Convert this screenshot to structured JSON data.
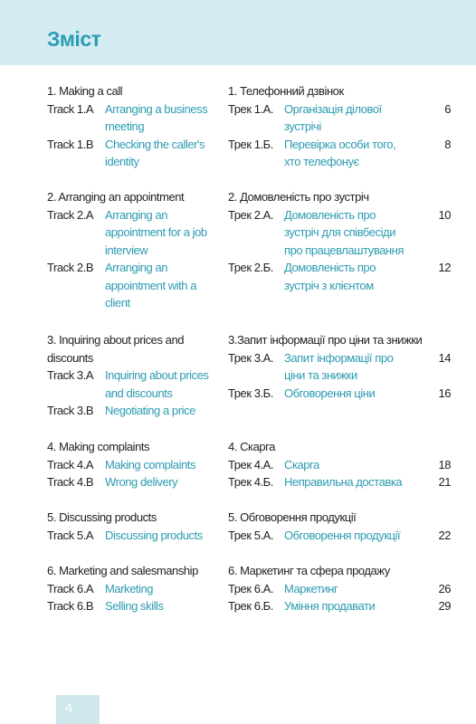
{
  "header": {
    "title": "Зміст"
  },
  "english": [
    {
      "title": "1. Making a call",
      "tracks": [
        {
          "label": "Track 1.A",
          "text": "Arranging a business meeting"
        },
        {
          "label": "Track 1.B",
          "text": "Checking the caller's identity"
        }
      ]
    },
    {
      "title": "2. Arranging an appointment",
      "tracks": [
        {
          "label": "Track 2.A",
          "text": "Arranging an appointment for a job interview"
        },
        {
          "label": "Track 2.B",
          "text": "Arranging an appointment with a client"
        }
      ]
    },
    {
      "title": "3. Inquiring about prices and discounts",
      "tracks": [
        {
          "label": "Track 3.A",
          "text": "Inquiring about prices and discounts"
        },
        {
          "label": "Track 3.B",
          "text": "Negotiating a price"
        }
      ]
    },
    {
      "title": "4. Making complaints",
      "tracks": [
        {
          "label": "Track 4.A",
          "text": "Making complaints"
        },
        {
          "label": "Track 4.B",
          "text": "Wrong delivery"
        }
      ]
    },
    {
      "title": "5. Discussing products",
      "tracks": [
        {
          "label": "Track 5.A",
          "text": "Discussing products"
        }
      ]
    },
    {
      "title": "6. Marketing and salesmanship",
      "tracks": [
        {
          "label": "Track 6.A",
          "text": "Marketing"
        },
        {
          "label": "Track 6.B",
          "text": "Selling skills"
        }
      ]
    }
  ],
  "ukrainian": [
    {
      "title": "1. Телефонний дзвінок",
      "tracks": [
        {
          "label": "Трек 1.А.",
          "text": "Організація ділової зустрічі",
          "page": 6
        },
        {
          "label": "Трек 1.Б.",
          "text": "Перевірка особи того, хто телефонує",
          "page": 8
        }
      ]
    },
    {
      "title": "2. Домовленість про зустріч",
      "tracks": [
        {
          "label": "Трек 2.А.",
          "text": "Домовленість про зустріч для співбесіди про працевлаштування",
          "page": 10
        },
        {
          "label": "Трек 2.Б.",
          "text": "Домовленість про зустріч з клієнтом",
          "page": 12
        }
      ]
    },
    {
      "title": "3.Запит інформації про ціни та знижки",
      "tracks": [
        {
          "label": "Трек 3.А.",
          "text": "Запит інформації про ціни та знижки",
          "page": 14
        },
        {
          "label": "Трек 3.Б.",
          "text": "Обговорення ціни",
          "page": 16
        }
      ]
    },
    {
      "title": "4. Скарга",
      "tracks": [
        {
          "label": "Трек 4.А.",
          "text": "Скарга",
          "page": 18
        },
        {
          "label": "Трек 4.Б.",
          "text": "Неправильна доставка",
          "page": 21
        }
      ]
    },
    {
      "title": "5. Обговорення продукції",
      "tracks": [
        {
          "label": "Трек 5.А.",
          "text": "Обговорення продукції",
          "page": 22
        }
      ]
    },
    {
      "title": "6. Маркетинг та сфера продажу",
      "tracks": [
        {
          "label": "Трек 6.А.",
          "text": "Маркетинг",
          "page": 26
        },
        {
          "label": "Трек 6.Б.",
          "text": "Уміння продавати",
          "page": 29
        }
      ]
    }
  ],
  "footer": {
    "page": 4
  }
}
